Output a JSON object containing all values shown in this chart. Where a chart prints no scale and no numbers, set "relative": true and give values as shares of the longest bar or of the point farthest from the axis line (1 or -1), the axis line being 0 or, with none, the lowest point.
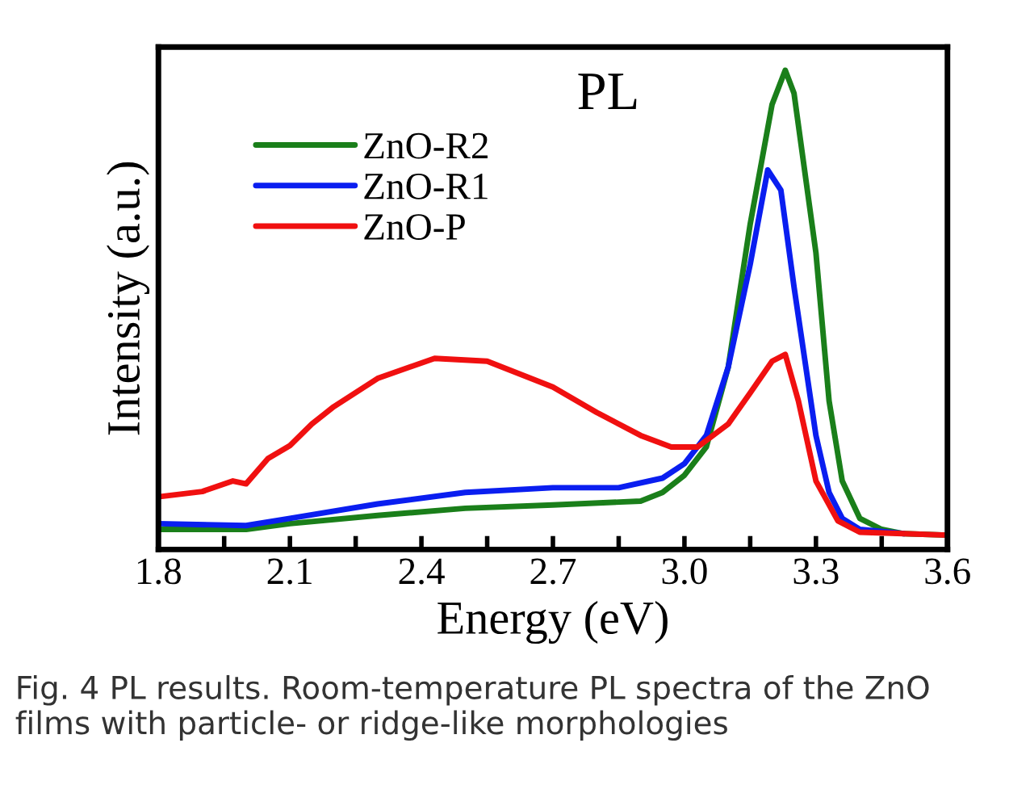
{
  "chart_data": {
    "type": "line",
    "title": "PL",
    "xlabel": "Energy (eV)",
    "ylabel": "Intensity (a.u.)",
    "relative": true,
    "xlim": [
      1.8,
      3.6
    ],
    "xticks": [
      1.8,
      {
        "value": 1.95,
        "label": null
      },
      2.1,
      {
        "value": 2.25,
        "label": null
      },
      2.4,
      {
        "value": 2.55,
        "label": null
      },
      2.7,
      {
        "value": 2.85,
        "label": null
      },
      {
        "value": 3.0,
        "label": "3.0"
      },
      {
        "value": 3.15,
        "label": null
      },
      3.3,
      {
        "value": 3.45,
        "label": null
      },
      3.6
    ],
    "tick_labels": "x",
    "legend": "top left",
    "grid": false,
    "line_style": "solid",
    "marker": "none",
    "annotations": [
      "Fig. 4 PL results. Room-temperature PL spectra of the ZnO films with particle- or ridge-like morphologies"
    ],
    "series": [
      {
        "name": "ZnO-R2",
        "color": "#1a7f1a",
        "x": [
          1.8,
          2.0,
          2.1,
          2.3,
          2.5,
          2.7,
          2.9,
          2.95,
          3.0,
          3.05,
          3.1,
          3.15,
          3.2,
          3.23,
          3.25,
          3.3,
          3.33,
          3.36,
          3.4,
          3.45,
          3.5,
          3.6
        ],
        "values": [
          0.042,
          0.042,
          0.054,
          0.071,
          0.086,
          0.093,
          0.101,
          0.119,
          0.155,
          0.214,
          0.381,
          0.679,
          0.929,
          1.0,
          0.952,
          0.619,
          0.31,
          0.143,
          0.065,
          0.042,
          0.033,
          0.03
        ]
      },
      {
        "name": "ZnO-R1",
        "color": "#0a1ef0",
        "x": [
          1.8,
          2.0,
          2.1,
          2.3,
          2.5,
          2.7,
          2.85,
          2.95,
          3.0,
          3.05,
          3.1,
          3.15,
          3.19,
          3.22,
          3.25,
          3.3,
          3.33,
          3.36,
          3.4,
          3.5
        ],
        "values": [
          0.054,
          0.05,
          0.065,
          0.095,
          0.119,
          0.129,
          0.129,
          0.149,
          0.179,
          0.238,
          0.381,
          0.595,
          0.792,
          0.75,
          0.548,
          0.238,
          0.119,
          0.065,
          0.042,
          0.033
        ]
      },
      {
        "name": "ZnO-P",
        "color": "#f01010",
        "x": [
          1.8,
          1.9,
          1.97,
          2.0,
          2.05,
          2.1,
          2.15,
          2.2,
          2.3,
          2.43,
          2.55,
          2.7,
          2.8,
          2.9,
          2.97,
          3.03,
          3.1,
          3.15,
          3.2,
          3.23,
          3.26,
          3.3,
          3.35,
          3.4,
          3.5,
          3.6
        ],
        "values": [
          0.11,
          0.121,
          0.143,
          0.137,
          0.19,
          0.217,
          0.262,
          0.298,
          0.357,
          0.399,
          0.393,
          0.339,
          0.286,
          0.238,
          0.214,
          0.214,
          0.262,
          0.327,
          0.393,
          0.407,
          0.31,
          0.143,
          0.06,
          0.036,
          0.033,
          0.03
        ]
      }
    ]
  }
}
